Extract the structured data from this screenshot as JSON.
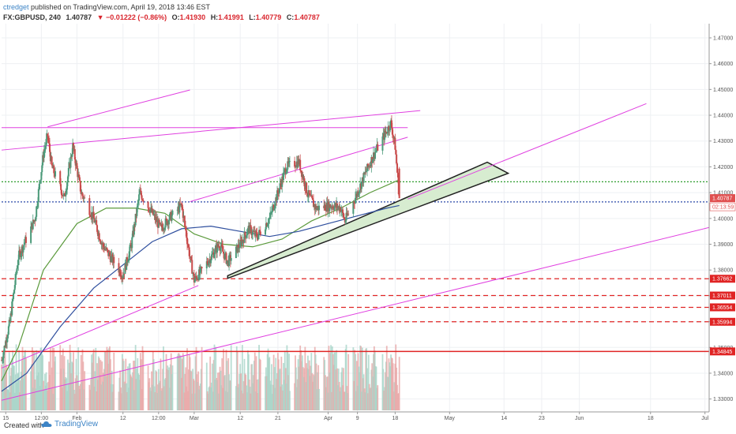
{
  "header": {
    "author": "ctredget",
    "published_text": "published on TradingView.com, April 19, 2018 13:46 EST",
    "symbol": "FX:GBPUSD, 240",
    "last": "1.40787",
    "change_arrow": "▼",
    "change": "−0.01222 (−0.86%)",
    "open_label": "O:",
    "open": "1.41930",
    "high_label": "H:",
    "high": "1.41991",
    "low_label": "L:",
    "low": "1.40779",
    "close_label": "C:",
    "close": "1.40787"
  },
  "footer": {
    "created_with": "Created with",
    "brand": "TradingView"
  },
  "chart_data": {
    "type": "candlestick",
    "symbol": "FX:GBPUSD",
    "interval": "240",
    "y_range": [
      1.325,
      1.4755
    ],
    "price_ticks": [
      1.47,
      1.46,
      1.45,
      1.44,
      1.43,
      1.42,
      1.41,
      1.4,
      1.39,
      1.38,
      1.37,
      1.36,
      1.35,
      1.34,
      1.33
    ],
    "price_tick_labels": [
      "1.47000",
      "1.46000",
      "1.45000",
      "1.44000",
      "1.43000",
      "1.42000",
      "1.41000",
      "1.40000",
      "1.39000",
      "1.38000",
      "1.37000",
      "1.36000",
      "1.35000",
      "1.34000",
      "1.33000"
    ],
    "x_range": [
      "2018-01-14",
      "2018-07-02"
    ],
    "time_ticks": [
      {
        "label": "15",
        "date": "2018-01-15"
      },
      {
        "label": "12:00",
        "date": "2018-01-23T12:00"
      },
      {
        "label": "Feb",
        "date": "2018-02-01"
      },
      {
        "label": "12",
        "date": "2018-02-12"
      },
      {
        "label": "12:00",
        "date": "2018-02-20T12:00"
      },
      {
        "label": "Mar",
        "date": "2018-03-01"
      },
      {
        "label": "12",
        "date": "2018-03-12"
      },
      {
        "label": "21",
        "date": "2018-03-21"
      },
      {
        "label": "Apr",
        "date": "2018-04-02"
      },
      {
        "label": "9",
        "date": "2018-04-09"
      },
      {
        "label": "18",
        "date": "2018-04-18"
      },
      {
        "label": "May",
        "date": "2018-05-01"
      },
      {
        "label": "14",
        "date": "2018-05-14"
      },
      {
        "label": "23",
        "date": "2018-05-23"
      },
      {
        "label": "Jun",
        "date": "2018-06-01"
      },
      {
        "label": "18",
        "date": "2018-06-18"
      },
      {
        "label": "Jul",
        "date": "2018-07-01"
      }
    ],
    "price_path": [
      [
        "2018-01-14",
        1.345
      ],
      [
        "2018-01-16",
        1.36
      ],
      [
        "2018-01-18",
        1.385
      ],
      [
        "2018-01-22",
        1.4
      ],
      [
        "2018-01-24",
        1.425
      ],
      [
        "2018-01-25",
        1.432
      ],
      [
        "2018-01-26",
        1.42
      ],
      [
        "2018-01-29",
        1.408
      ],
      [
        "2018-01-31",
        1.428
      ],
      [
        "2018-02-02",
        1.41
      ],
      [
        "2018-02-05",
        1.4
      ],
      [
        "2018-02-07",
        1.39
      ],
      [
        "2018-02-09",
        1.385
      ],
      [
        "2018-02-12",
        1.378
      ],
      [
        "2018-02-14",
        1.39
      ],
      [
        "2018-02-16",
        1.41
      ],
      [
        "2018-02-19",
        1.402
      ],
      [
        "2018-02-21",
        1.396
      ],
      [
        "2018-02-23",
        1.4
      ],
      [
        "2018-02-26",
        1.405
      ],
      [
        "2018-02-28",
        1.385
      ],
      [
        "2018-03-01",
        1.376
      ],
      [
        "2018-03-02",
        1.378
      ],
      [
        "2018-03-05",
        1.385
      ],
      [
        "2018-03-07",
        1.39
      ],
      [
        "2018-03-09",
        1.383
      ],
      [
        "2018-03-12",
        1.39
      ],
      [
        "2018-03-14",
        1.396
      ],
      [
        "2018-03-16",
        1.393
      ],
      [
        "2018-03-19",
        1.4
      ],
      [
        "2018-03-21",
        1.41
      ],
      [
        "2018-03-23",
        1.42
      ],
      [
        "2018-03-26",
        1.422
      ],
      [
        "2018-03-28",
        1.41
      ],
      [
        "2018-03-30",
        1.404
      ],
      [
        "2018-04-03",
        1.405
      ],
      [
        "2018-04-05",
        1.404
      ],
      [
        "2018-04-06",
        1.399
      ],
      [
        "2018-04-09",
        1.41
      ],
      [
        "2018-04-11",
        1.418
      ],
      [
        "2018-04-13",
        1.425
      ],
      [
        "2018-04-16",
        1.434
      ],
      [
        "2018-04-17",
        1.437
      ],
      [
        "2018-04-18",
        1.428
      ],
      [
        "2018-04-19",
        1.4079
      ]
    ],
    "current_price": 1.40787,
    "current_price_label": "1.40787",
    "countdown_label": "02:13:59",
    "moving_averages": [
      {
        "color": "#5b9a3c",
        "points": [
          [
            "2018-01-14",
            1.337
          ],
          [
            "2018-01-18",
            1.35
          ],
          [
            "2018-01-24",
            1.38
          ],
          [
            "2018-02-01",
            1.398
          ],
          [
            "2018-02-08",
            1.404
          ],
          [
            "2018-02-15",
            1.404
          ],
          [
            "2018-02-22",
            1.402
          ],
          [
            "2018-03-01",
            1.394
          ],
          [
            "2018-03-08",
            1.39
          ],
          [
            "2018-03-15",
            1.389
          ],
          [
            "2018-03-22",
            1.392
          ],
          [
            "2018-03-29",
            1.399
          ],
          [
            "2018-04-05",
            1.404
          ],
          [
            "2018-04-12",
            1.41
          ],
          [
            "2018-04-19",
            1.415
          ]
        ]
      },
      {
        "color": "#2f4f9e",
        "points": [
          [
            "2018-01-14",
            1.333
          ],
          [
            "2018-01-20",
            1.34
          ],
          [
            "2018-01-28",
            1.358
          ],
          [
            "2018-02-05",
            1.373
          ],
          [
            "2018-02-12",
            1.382
          ],
          [
            "2018-02-19",
            1.391
          ],
          [
            "2018-02-26",
            1.396
          ],
          [
            "2018-03-05",
            1.397
          ],
          [
            "2018-03-12",
            1.395
          ],
          [
            "2018-03-19",
            1.393
          ],
          [
            "2018-03-26",
            1.395
          ],
          [
            "2018-04-02",
            1.398
          ],
          [
            "2018-04-09",
            1.401
          ],
          [
            "2018-04-16",
            1.404
          ],
          [
            "2018-04-19",
            1.405
          ]
        ]
      }
    ],
    "horizontal_levels": [
      {
        "price": 1.37662,
        "label": "1.37662",
        "style": "dashed",
        "color": "#e02424"
      },
      {
        "price": 1.37011,
        "label": "1.37011",
        "style": "dashed",
        "color": "#e02424"
      },
      {
        "price": 1.36554,
        "label": "1.36554",
        "style": "dashed",
        "color": "#e02424"
      },
      {
        "price": 1.35994,
        "label": "1.35994",
        "style": "dashed",
        "color": "#e02424"
      },
      {
        "price": 1.34845,
        "label": "1.34845",
        "style": "solid",
        "color": "#e02424"
      },
      {
        "price": 1.4142,
        "label": "",
        "style": "dotted",
        "color": "#2e9e2e"
      },
      {
        "price": 1.4064,
        "label": "",
        "style": "dotted",
        "color": "#2b4aa8"
      }
    ],
    "horizontal_resistance": {
      "price": 1.4352,
      "from": "2018-01-14",
      "to": "2018-04-21",
      "color": "#e040e0"
    },
    "trend_lines": [
      {
        "color": "#e040e0",
        "from": [
          "2018-01-14",
          1.4265
        ],
        "to": [
          "2018-04-24",
          1.4418
        ]
      },
      {
        "color": "#e040e0",
        "from": [
          "2018-01-25",
          1.4355
        ],
        "to": [
          "2018-02-28",
          1.4498
        ]
      },
      {
        "color": "#e040e0",
        "from": [
          "2018-02-28",
          1.4065
        ],
        "to": [
          "2018-04-21",
          1.4315
        ]
      },
      {
        "color": "#e040e0",
        "from": [
          "2018-04-21",
          1.4075
        ],
        "to": [
          "2018-06-17",
          1.4445
        ]
      },
      {
        "color": "#e040e0",
        "from": [
          "2018-01-14",
          1.342
        ],
        "to": [
          "2018-03-02",
          1.374
        ]
      },
      {
        "color": "#e040e0",
        "from": [
          "2018-01-14",
          1.3295
        ],
        "to": [
          "2018-07-02",
          1.3965
        ]
      }
    ],
    "channel_wedge": {
      "color": "#d7ecd0",
      "points": [
        [
          "2018-03-09",
          1.3778
        ],
        [
          "2018-05-10",
          1.4218
        ],
        [
          "2018-05-15",
          1.4175
        ],
        [
          "2018-03-09",
          1.3768
        ]
      ]
    },
    "volume": {
      "max_height_fraction": 0.17,
      "colors": [
        "#e9a8a8",
        "#a8d5c8"
      ]
    }
  }
}
